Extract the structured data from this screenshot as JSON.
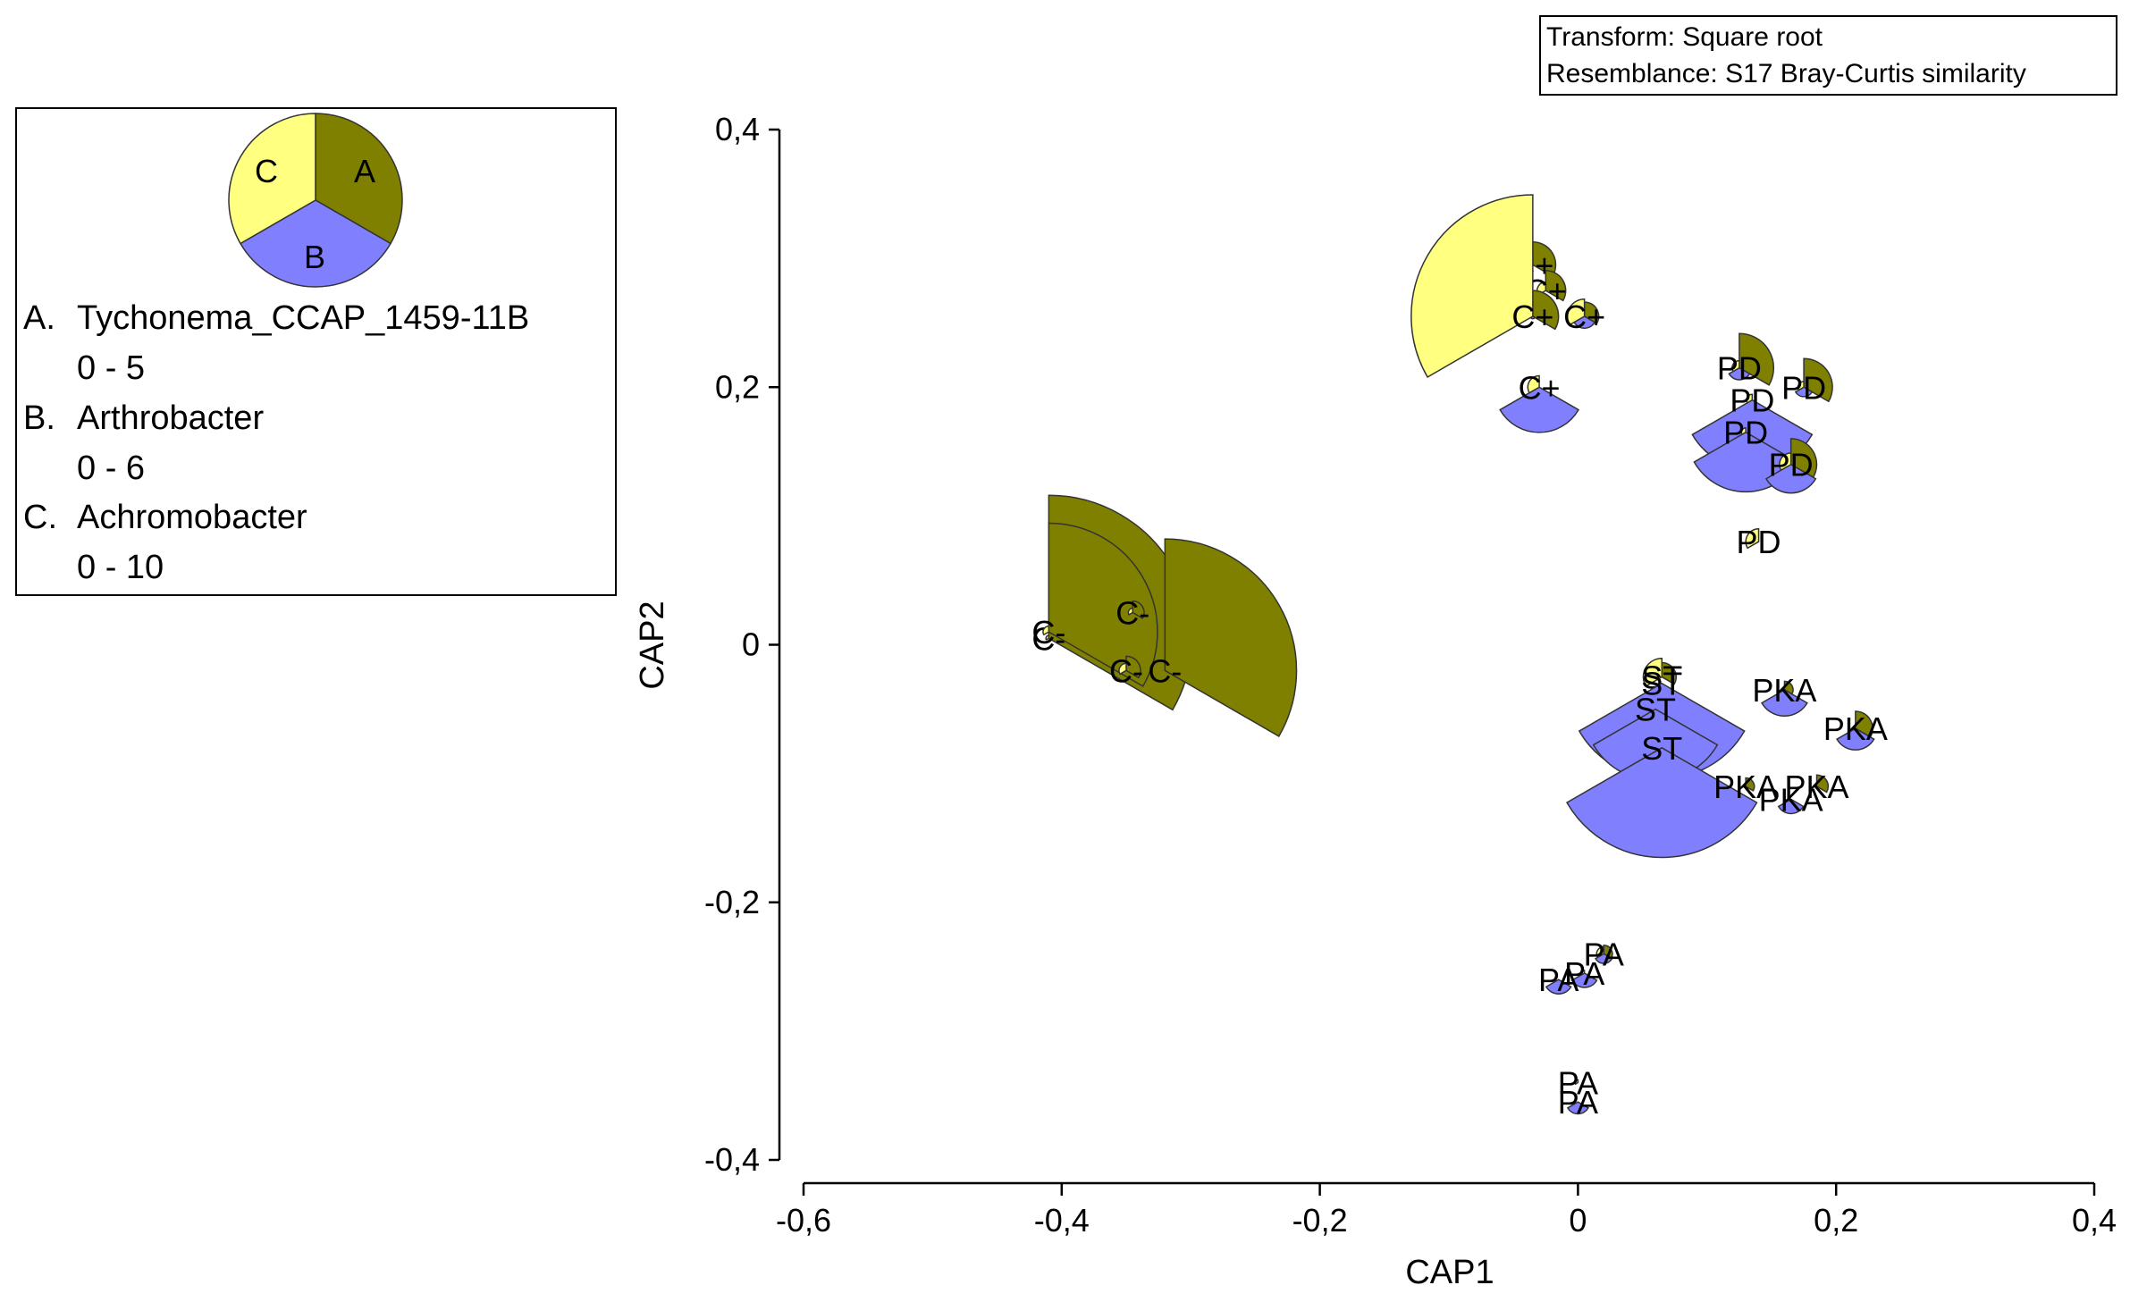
{
  "chart_data": {
    "type": "scatter",
    "subtype": "segmented-bubble (CAP ordination)",
    "xlabel": "CAP1",
    "ylabel": "CAP2",
    "xlim": [
      -0.6,
      0.4
    ],
    "ylim": [
      -0.4,
      0.4
    ],
    "x_ticks": [
      -0.6,
      -0.4,
      -0.2,
      0,
      0.2,
      0.4
    ],
    "y_ticks": [
      -0.4,
      -0.2,
      0,
      0.2,
      0.4
    ],
    "x_tick_labels": [
      "-0,6",
      "-0,4",
      "-0,2",
      "0",
      "0,2",
      "0,4"
    ],
    "y_tick_labels": [
      "-0,4",
      "-0,2",
      "0",
      "0,2",
      "0,4"
    ],
    "info_box": {
      "line1": "Transform: Square root",
      "line2": "Resemblance: S17 Bray-Curtis similarity"
    },
    "legend": {
      "key_letters": [
        "A",
        "B",
        "C"
      ],
      "variables": [
        {
          "letter": "A.",
          "name": "Tychonema_CCAP_1459-11B",
          "range": "0 - 5",
          "max": 5,
          "color": "#808000"
        },
        {
          "letter": "B.",
          "name": "Arthrobacter",
          "range": "0 - 6",
          "max": 6,
          "color": "#8080ff"
        },
        {
          "letter": "C.",
          "name": "Achromobacter",
          "range": "0 - 10",
          "max": 10,
          "color": "#ffff80"
        }
      ]
    },
    "series": [
      {
        "name": "C-",
        "points": [
          {
            "x": -0.41,
            "y": 0.005,
            "a": 5.0,
            "b": 0,
            "c": 0.2,
            "label": "C-"
          },
          {
            "x": -0.41,
            "y": 0.01,
            "a": 3.8,
            "b": 0,
            "c": 0.4,
            "label": "C-"
          },
          {
            "x": -0.345,
            "y": 0.025,
            "a": 0.4,
            "b": 0,
            "c": 0.3,
            "label": "C-"
          },
          {
            "x": -0.35,
            "y": -0.02,
            "a": 0.5,
            "b": 0,
            "c": 0.5,
            "label": "C-"
          },
          {
            "x": -0.32,
            "y": -0.02,
            "a": 4.6,
            "b": 0,
            "c": 0,
            "label": "C-"
          }
        ]
      },
      {
        "name": "C+",
        "points": [
          {
            "x": -0.035,
            "y": 0.295,
            "a": 0.8,
            "b": 0,
            "c": 1.0,
            "label": "C+"
          },
          {
            "x": -0.025,
            "y": 0.275,
            "a": 0.7,
            "b": 0,
            "c": 0.6,
            "label": "C+"
          },
          {
            "x": -0.035,
            "y": 0.255,
            "a": 0.9,
            "b": 0.1,
            "c": 8.5,
            "label": "C+"
          },
          {
            "x": 0.005,
            "y": 0.255,
            "a": 0.5,
            "b": 0.5,
            "c": 1.2,
            "label": "C+"
          },
          {
            "x": -0.03,
            "y": 0.2,
            "a": 0,
            "b": 1.9,
            "c": 0.8,
            "label": "C+"
          }
        ]
      },
      {
        "name": "PD",
        "points": [
          {
            "x": 0.125,
            "y": 0.215,
            "a": 1.2,
            "b": 0.5,
            "c": 0.5,
            "label": "PD"
          },
          {
            "x": 0.175,
            "y": 0.2,
            "a": 1.0,
            "b": 0.4,
            "c": 0.4,
            "label": "PD"
          },
          {
            "x": 0.135,
            "y": 0.19,
            "a": 0,
            "b": 2.9,
            "c": 0.4,
            "label": "PD"
          },
          {
            "x": 0.13,
            "y": 0.165,
            "a": 0,
            "b": 2.5,
            "c": 0.3,
            "label": "PD"
          },
          {
            "x": 0.165,
            "y": 0.14,
            "a": 0.9,
            "b": 1.2,
            "c": 0.8,
            "label": "PD"
          },
          {
            "x": 0.14,
            "y": 0.08,
            "a": 0,
            "b": 0,
            "c": 0.9,
            "label": "PD"
          }
        ]
      },
      {
        "name": "ST",
        "points": [
          {
            "x": 0.065,
            "y": -0.025,
            "a": 0.5,
            "b": 0,
            "c": 1.3,
            "label": "ST"
          },
          {
            "x": 0.065,
            "y": -0.03,
            "a": 0,
            "b": 4.0,
            "c": 0,
            "label": "ST"
          },
          {
            "x": 0.06,
            "y": -0.05,
            "a": 0,
            "b": 3.0,
            "c": 0,
            "label": "ST"
          },
          {
            "x": 0.065,
            "y": -0.08,
            "a": 0,
            "b": 4.6,
            "c": 0,
            "label": "ST"
          }
        ]
      },
      {
        "name": "PKA",
        "points": [
          {
            "x": 0.16,
            "y": -0.035,
            "a": 0.3,
            "b": 1.1,
            "c": 0,
            "label": "PKA"
          },
          {
            "x": 0.215,
            "y": -0.065,
            "a": 0.6,
            "b": 0.9,
            "c": 0,
            "label": "PKA"
          },
          {
            "x": 0.13,
            "y": -0.11,
            "a": 0.3,
            "b": 0,
            "c": 0,
            "label": "PKA"
          },
          {
            "x": 0.185,
            "y": -0.11,
            "a": 0.4,
            "b": 0,
            "c": 0,
            "label": "PKA"
          },
          {
            "x": 0.165,
            "y": -0.12,
            "a": 0,
            "b": 0.6,
            "c": 0,
            "label": "PKA"
          }
        ]
      },
      {
        "name": "PA",
        "points": [
          {
            "x": 0.02,
            "y": -0.24,
            "a": 0.3,
            "b": 0.4,
            "c": 0.5,
            "label": "PA"
          },
          {
            "x": 0.005,
            "y": -0.255,
            "a": 0,
            "b": 0.6,
            "c": 0.2,
            "label": "PA"
          },
          {
            "x": -0.015,
            "y": -0.26,
            "a": 0,
            "b": 0.6,
            "c": 0,
            "label": "PA"
          },
          {
            "x": 0,
            "y": -0.34,
            "a": 0,
            "b": 0,
            "c": 0.2,
            "label": "PA"
          },
          {
            "x": 0,
            "y": -0.355,
            "a": 0,
            "b": 0.5,
            "c": 0,
            "label": "PA"
          }
        ]
      }
    ]
  }
}
